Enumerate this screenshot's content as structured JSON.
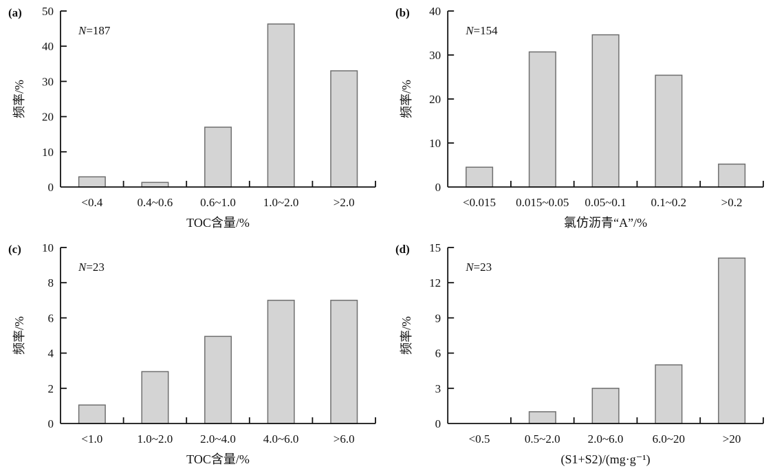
{
  "figure": {
    "background": "#ffffff",
    "bar_fill": "#d4d4d4",
    "bar_stroke": "#6f6f6f",
    "axis_color": "#111111",
    "text_color": "#111111"
  },
  "chart_data": [
    {
      "type": "bar",
      "panel_label": "(a)",
      "sample_size_label": "N=187",
      "categories": [
        "<0.4",
        "0.4~0.6",
        "0.6~1.0",
        "1.0~2.0",
        ">2.0"
      ],
      "values": [
        2.9,
        1.3,
        17,
        46.3,
        33
      ],
      "xlabel": "TOC含量/%",
      "ylabel": "频率/%",
      "ylim": [
        0,
        50
      ],
      "yticks": [
        0,
        10,
        20,
        30,
        40,
        50
      ],
      "grid": "off",
      "legend": "none"
    },
    {
      "type": "bar",
      "panel_label": "(b)",
      "sample_size_label": "N=154",
      "categories": [
        "<0.015",
        "0.015~0.05",
        "0.05~0.1",
        "0.1~0.2",
        ">0.2"
      ],
      "values": [
        4.5,
        30.7,
        34.6,
        25.4,
        5.2
      ],
      "xlabel": "氯仿沥青“A”/%",
      "ylabel": "频率/%",
      "ylim": [
        0,
        40
      ],
      "yticks": [
        0,
        10,
        20,
        30,
        40
      ],
      "grid": "off",
      "legend": "none"
    },
    {
      "type": "bar",
      "panel_label": "(c)",
      "sample_size_label": "N=23",
      "categories": [
        "<1.0",
        "1.0~2.0",
        "2.0~4.0",
        "4.0~6.0",
        ">6.0"
      ],
      "values": [
        1.05,
        2.95,
        4.95,
        7,
        7
      ],
      "xlabel": "TOC含量/%",
      "ylabel": "频率/%",
      "ylim": [
        0,
        10
      ],
      "yticks": [
        0,
        2,
        4,
        6,
        8,
        10
      ],
      "grid": "off",
      "legend": "none"
    },
    {
      "type": "bar",
      "panel_label": "(d)",
      "sample_size_label": "N=23",
      "categories": [
        "<0.5",
        "0.5~2.0",
        "2.0~6.0",
        "6.0~20",
        ">20"
      ],
      "values": [
        0,
        1,
        3,
        5,
        14.1
      ],
      "xlabel": "(S1+S2)/(mg·g⁻¹)",
      "ylabel": "频率/%",
      "ylim": [
        0,
        15
      ],
      "yticks": [
        0,
        3,
        6,
        9,
        12,
        15
      ],
      "grid": "off",
      "legend": "none"
    }
  ]
}
